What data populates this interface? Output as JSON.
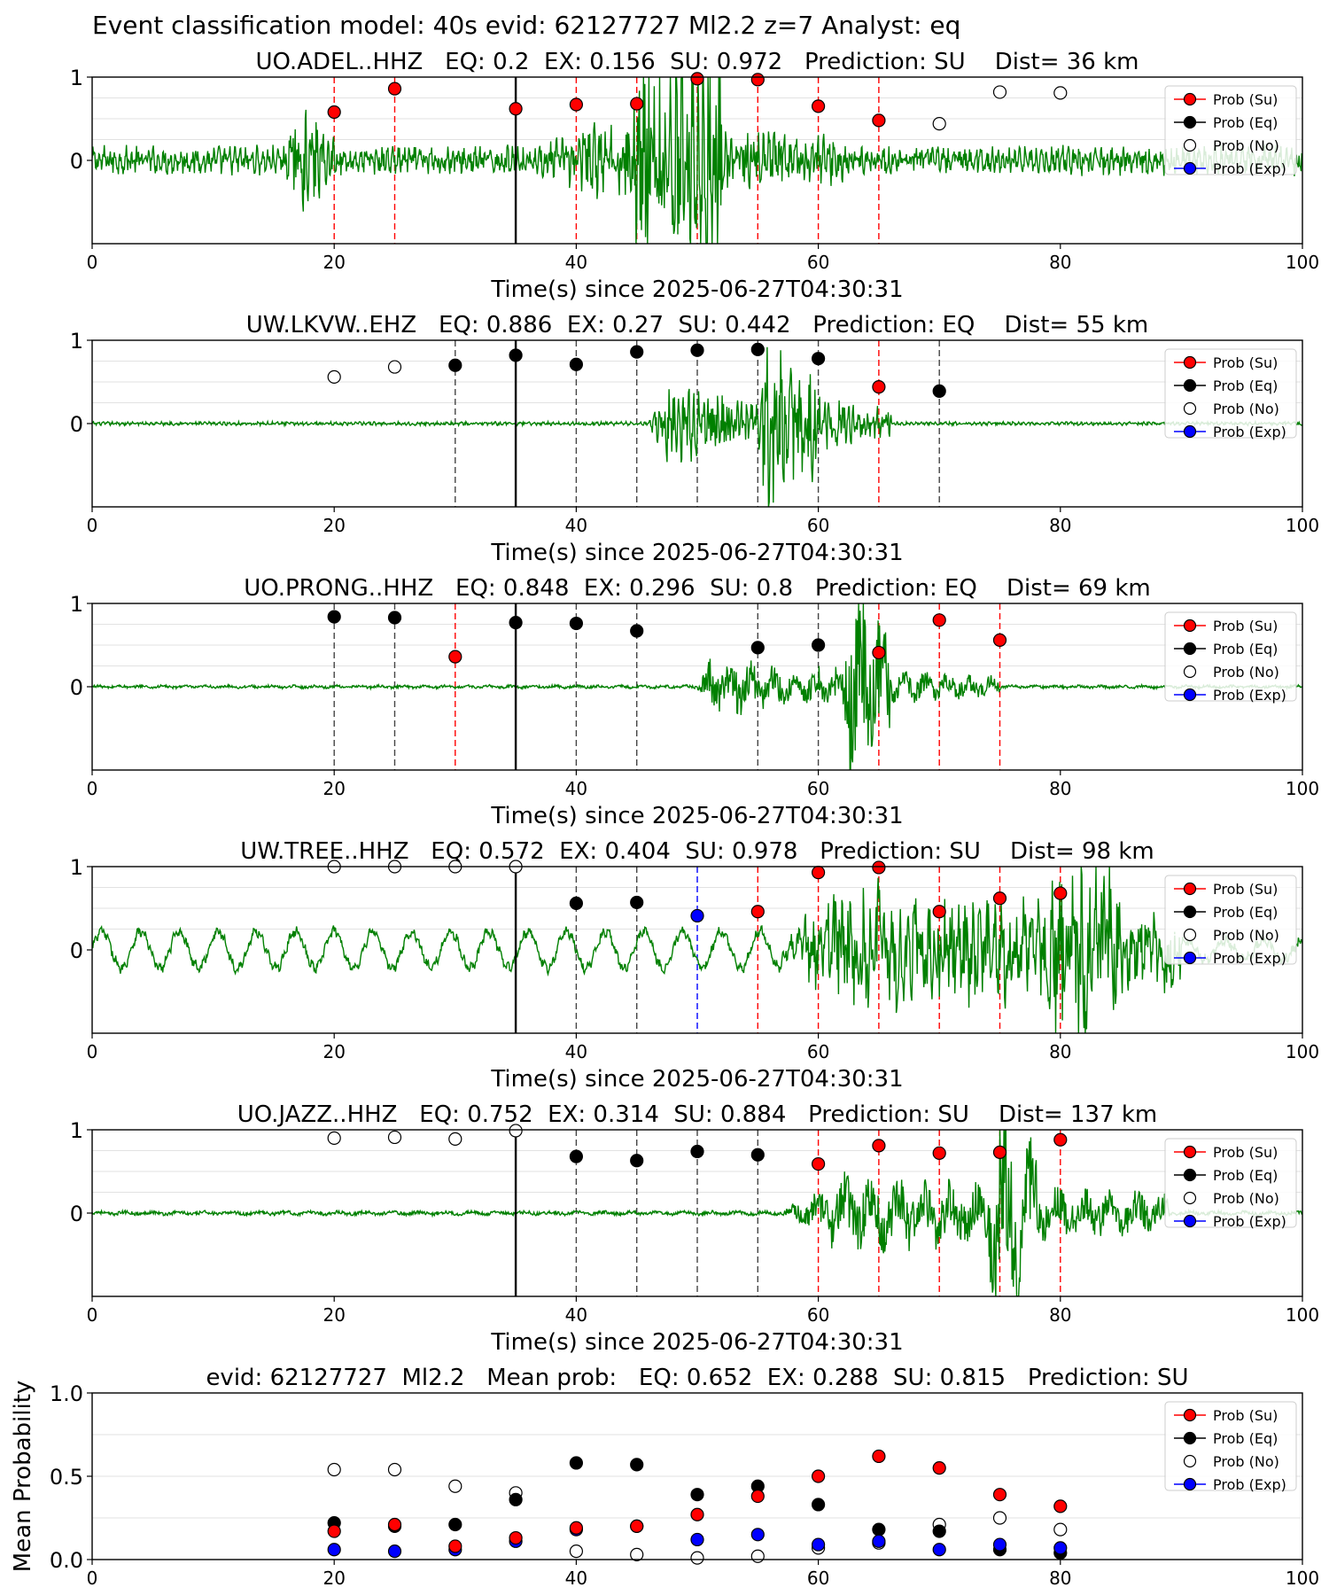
{
  "suptitle": "Event classification model: 40s evid: 62127727 Ml2.2 z=7 Analyst: eq",
  "colors": {
    "su": "#ff0000",
    "eq": "#000000",
    "no": "#ffffff",
    "exp": "#0000ff",
    "waveform": "#008000"
  },
  "legend_labels": [
    "Prob (Su)",
    "Prob (Eq)",
    "Prob (No)",
    "Prob (Exp)"
  ],
  "chart_data": [
    {
      "type": "line",
      "title": "UO.ADEL..HHZ   EQ: 0.2  EX: 0.156  SU: 0.972   Prediction: SU    Dist= 36 km",
      "xlabel": "Time(s) since 2025-06-27T04:30:31",
      "ylabel": "",
      "xlim": [
        0,
        100
      ],
      "ylim": [
        -1,
        1
      ],
      "x_ticks": [
        "0",
        "20",
        "40",
        "60",
        "80",
        "100"
      ],
      "y_ticks": [
        "0",
        "1"
      ],
      "legend": "top-right",
      "origin_time": 35,
      "waveform": {
        "noise": 0.12,
        "bursts": [
          [
            16,
            4,
            0.35
          ],
          [
            44,
            8,
            0.9
          ],
          [
            49,
            3,
            0.6
          ],
          [
            37,
            25,
            0.2
          ]
        ],
        "period": 0.45
      },
      "points": [
        {
          "x": 20,
          "y": 0.58,
          "cls": "su"
        },
        {
          "x": 25,
          "y": 0.86,
          "cls": "su"
        },
        {
          "x": 35,
          "y": 0.62,
          "cls": "su"
        },
        {
          "x": 40,
          "y": 0.67,
          "cls": "su"
        },
        {
          "x": 45,
          "y": 0.68,
          "cls": "su"
        },
        {
          "x": 50,
          "y": 0.98,
          "cls": "su"
        },
        {
          "x": 55,
          "y": 0.97,
          "cls": "su"
        },
        {
          "x": 60,
          "y": 0.65,
          "cls": "su"
        },
        {
          "x": 65,
          "y": 0.48,
          "cls": "su"
        },
        {
          "x": 70,
          "y": 0.44,
          "cls": "no"
        },
        {
          "x": 75,
          "y": 0.82,
          "cls": "no"
        },
        {
          "x": 80,
          "y": 0.81,
          "cls": "no"
        }
      ]
    },
    {
      "type": "line",
      "title": "UW.LKVW..EHZ   EQ: 0.886  EX: 0.27  SU: 0.442   Prediction: EQ    Dist= 55 km",
      "xlabel": "Time(s) since 2025-06-27T04:30:31",
      "ylabel": "",
      "xlim": [
        0,
        100
      ],
      "ylim": [
        -1,
        1
      ],
      "x_ticks": [
        "0",
        "20",
        "40",
        "60",
        "80",
        "100"
      ],
      "y_ticks": [
        "0",
        "1"
      ],
      "legend": "top-right",
      "origin_time": 35,
      "waveform": {
        "noise": 0.015,
        "bursts": [
          [
            46,
            10,
            0.35
          ],
          [
            55,
            5,
            0.75
          ],
          [
            58,
            8,
            0.25
          ]
        ],
        "period": 0.4
      },
      "points": [
        {
          "x": 20,
          "y": 0.56,
          "cls": "no"
        },
        {
          "x": 25,
          "y": 0.68,
          "cls": "no"
        },
        {
          "x": 30,
          "y": 0.7,
          "cls": "eq"
        },
        {
          "x": 35,
          "y": 0.82,
          "cls": "eq"
        },
        {
          "x": 40,
          "y": 0.71,
          "cls": "eq"
        },
        {
          "x": 45,
          "y": 0.86,
          "cls": "eq"
        },
        {
          "x": 50,
          "y": 0.88,
          "cls": "eq"
        },
        {
          "x": 55,
          "y": 0.89,
          "cls": "eq"
        },
        {
          "x": 60,
          "y": 0.78,
          "cls": "eq"
        },
        {
          "x": 65,
          "y": 0.44,
          "cls": "su"
        },
        {
          "x": 70,
          "y": 0.39,
          "cls": "eq"
        }
      ]
    },
    {
      "type": "line",
      "title": "UO.PRONG..HHZ   EQ: 0.848  EX: 0.296  SU: 0.8   Prediction: EQ    Dist= 69 km",
      "xlabel": "Time(s) since 2025-06-27T04:30:31",
      "ylabel": "",
      "xlim": [
        0,
        100
      ],
      "ylim": [
        -1,
        1
      ],
      "x_ticks": [
        "0",
        "20",
        "40",
        "60",
        "80",
        "100"
      ],
      "y_ticks": [
        "0",
        "1"
      ],
      "legend": "top-right",
      "origin_time": 35,
      "waveform": {
        "noise": 0.015,
        "bursts": [
          [
            50,
            8,
            0.3
          ],
          [
            62,
            4,
            0.85
          ],
          [
            57,
            18,
            0.18
          ]
        ],
        "period": 1.8
      },
      "points": [
        {
          "x": 20,
          "y": 0.84,
          "cls": "eq"
        },
        {
          "x": 25,
          "y": 0.83,
          "cls": "eq"
        },
        {
          "x": 30,
          "y": 0.36,
          "cls": "su"
        },
        {
          "x": 35,
          "y": 0.77,
          "cls": "eq"
        },
        {
          "x": 40,
          "y": 0.76,
          "cls": "eq"
        },
        {
          "x": 45,
          "y": 0.67,
          "cls": "eq"
        },
        {
          "x": 55,
          "y": 0.47,
          "cls": "eq"
        },
        {
          "x": 60,
          "y": 0.5,
          "cls": "eq"
        },
        {
          "x": 65,
          "y": 0.41,
          "cls": "su"
        },
        {
          "x": 70,
          "y": 0.8,
          "cls": "su"
        },
        {
          "x": 75,
          "y": 0.56,
          "cls": "su"
        }
      ]
    },
    {
      "type": "line",
      "title": "UW.TREE..HHZ   EQ: 0.572  EX: 0.404  SU: 0.978   Prediction: SU    Dist= 98 km",
      "xlabel": "Time(s) since 2025-06-27T04:30:31",
      "ylabel": "",
      "xlim": [
        0,
        100
      ],
      "ylim": [
        -1,
        1
      ],
      "x_ticks": [
        "0",
        "20",
        "40",
        "60",
        "80",
        "100"
      ],
      "y_ticks": [
        "0",
        "1"
      ],
      "legend": "top-right",
      "origin_time": 35,
      "waveform": {
        "noise": 0.05,
        "swell": 0.22,
        "bursts": [
          [
            57,
            33,
            0.55
          ],
          [
            79,
            6,
            0.7
          ]
        ],
        "period": 0.6
      },
      "points": [
        {
          "x": 20,
          "y": 1.0,
          "cls": "no"
        },
        {
          "x": 25,
          "y": 1.0,
          "cls": "no"
        },
        {
          "x": 30,
          "y": 1.0,
          "cls": "no"
        },
        {
          "x": 35,
          "y": 1.0,
          "cls": "no"
        },
        {
          "x": 40,
          "y": 0.56,
          "cls": "eq"
        },
        {
          "x": 45,
          "y": 0.57,
          "cls": "eq"
        },
        {
          "x": 50,
          "y": 0.41,
          "cls": "exp"
        },
        {
          "x": 55,
          "y": 0.46,
          "cls": "su"
        },
        {
          "x": 60,
          "y": 0.93,
          "cls": "su"
        },
        {
          "x": 65,
          "y": 0.99,
          "cls": "su"
        },
        {
          "x": 70,
          "y": 0.46,
          "cls": "su"
        },
        {
          "x": 75,
          "y": 0.62,
          "cls": "su"
        },
        {
          "x": 80,
          "y": 0.68,
          "cls": "su"
        }
      ]
    },
    {
      "type": "line",
      "title": "UO.JAZZ..HHZ   EQ: 0.752  EX: 0.314  SU: 0.884   Prediction: SU    Dist= 137 km",
      "xlabel": "Time(s) since 2025-06-27T04:30:31",
      "ylabel": "",
      "xlim": [
        0,
        100
      ],
      "ylim": [
        -1,
        1
      ],
      "x_ticks": [
        "0",
        "20",
        "40",
        "60",
        "80",
        "100"
      ],
      "y_ticks": [
        "0",
        "1"
      ],
      "legend": "top-right",
      "origin_time": 35,
      "waveform": {
        "noise": 0.02,
        "bursts": [
          [
            57,
            32,
            0.35
          ],
          [
            74,
            4,
            0.85
          ]
        ],
        "period": 2.2
      },
      "points": [
        {
          "x": 20,
          "y": 0.9,
          "cls": "no"
        },
        {
          "x": 25,
          "y": 0.91,
          "cls": "no"
        },
        {
          "x": 30,
          "y": 0.89,
          "cls": "no"
        },
        {
          "x": 35,
          "y": 0.99,
          "cls": "no"
        },
        {
          "x": 40,
          "y": 0.68,
          "cls": "eq"
        },
        {
          "x": 45,
          "y": 0.63,
          "cls": "eq"
        },
        {
          "x": 50,
          "y": 0.74,
          "cls": "eq"
        },
        {
          "x": 55,
          "y": 0.7,
          "cls": "eq"
        },
        {
          "x": 60,
          "y": 0.59,
          "cls": "su"
        },
        {
          "x": 65,
          "y": 0.81,
          "cls": "su"
        },
        {
          "x": 70,
          "y": 0.72,
          "cls": "su"
        },
        {
          "x": 75,
          "y": 0.73,
          "cls": "su"
        },
        {
          "x": 80,
          "y": 0.88,
          "cls": "su"
        }
      ]
    },
    {
      "type": "scatter",
      "title": "evid: 62127727  Ml2.2   Mean prob:   EQ: 0.652  EX: 0.288  SU: 0.815   Prediction: SU",
      "xlabel": "",
      "ylabel": "Mean Probability",
      "xlim": [
        0,
        100
      ],
      "ylim": [
        0,
        1
      ],
      "x_ticks": [
        "0",
        "20",
        "40",
        "60",
        "80",
        "100"
      ],
      "y_ticks": [
        "0.0",
        "0.5",
        "1.0"
      ],
      "legend": "top-right",
      "x": [
        20,
        25,
        30,
        35,
        40,
        45,
        50,
        55,
        60,
        65,
        70,
        75,
        80
      ],
      "series": [
        {
          "key": "no",
          "name": "Prob (No)",
          "values": [
            0.54,
            0.54,
            0.44,
            0.4,
            0.05,
            0.03,
            0.01,
            0.02,
            0.07,
            0.1,
            0.21,
            0.25,
            0.18
          ]
        },
        {
          "key": "eq",
          "name": "Prob (Eq)",
          "values": [
            0.22,
            0.2,
            0.21,
            0.36,
            0.58,
            0.57,
            0.39,
            0.44,
            0.33,
            0.18,
            0.17,
            0.06,
            0.04
          ]
        },
        {
          "key": "exp",
          "name": "Prob (Exp)",
          "values": [
            0.06,
            0.05,
            0.06,
            0.11,
            0.18,
            0.2,
            0.12,
            0.15,
            0.09,
            0.11,
            0.06,
            0.09,
            0.07
          ]
        },
        {
          "key": "su",
          "name": "Prob (Su)",
          "values": [
            0.17,
            0.21,
            0.08,
            0.13,
            0.19,
            0.2,
            0.27,
            0.38,
            0.5,
            0.62,
            0.55,
            0.39,
            0.32
          ]
        }
      ]
    }
  ]
}
